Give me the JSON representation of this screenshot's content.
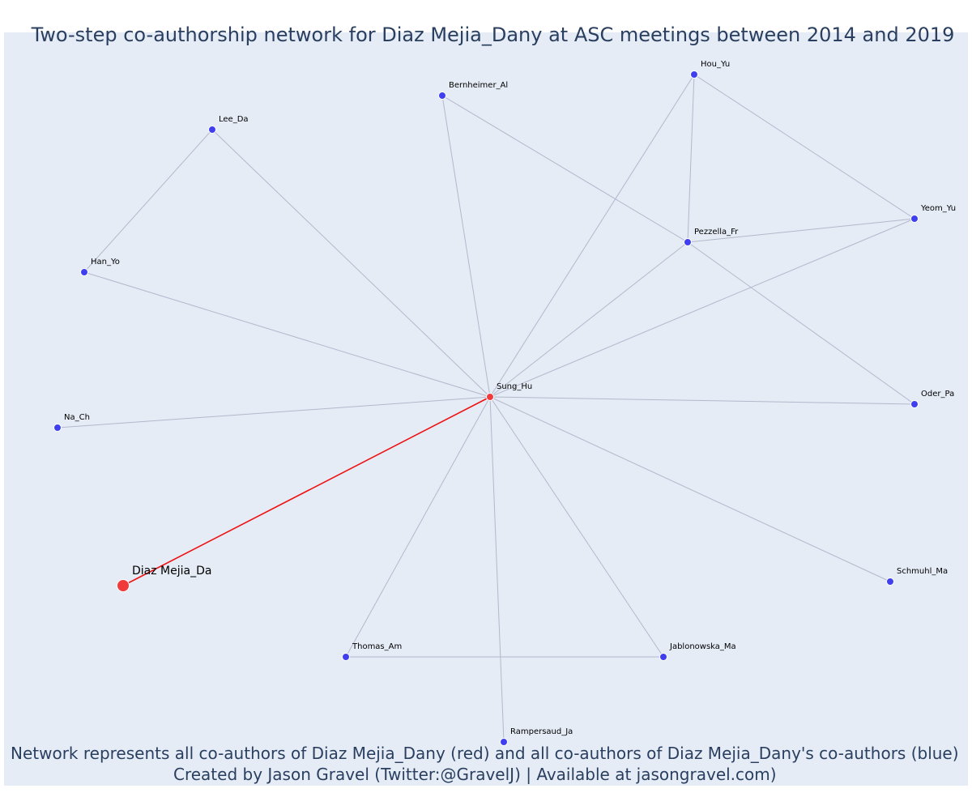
{
  "title": "Two-step co-authorship network for Diaz Mejia_Dany at ASC meetings between 2014 and 2019",
  "caption": {
    "line1": "Network represents all co-authors of Diaz Mejia_Dany (red) and all co-authors of Diaz Mejia_Dany's co-authors (blue)",
    "line2": "Created by Jason Gravel (Twitter:@GravelJ) | Available at jasongravel.com)"
  },
  "colors": {
    "background": "#e5ecf6",
    "edge": "#b3b8cc",
    "direct_edge": "#ee1111",
    "coauthor_node": "#3f3ff0",
    "focal_node": "#ef3b3b",
    "text": "#2a3f5f"
  },
  "nodes": [
    {
      "id": "Diaz Mejia_Da",
      "group": "focal"
    },
    {
      "id": "Sung_Hu",
      "group": "coauthor"
    },
    {
      "id": "Hou_Yu",
      "group": "second-degree"
    },
    {
      "id": "Bernheimer_Al",
      "group": "second-degree"
    },
    {
      "id": "Lee_Da",
      "group": "second-degree"
    },
    {
      "id": "Yeom_Yu",
      "group": "second-degree"
    },
    {
      "id": "Pezzella_Fr",
      "group": "second-degree"
    },
    {
      "id": "Han_Yo",
      "group": "second-degree"
    },
    {
      "id": "Na_Ch",
      "group": "second-degree"
    },
    {
      "id": "Oder_Pa",
      "group": "second-degree"
    },
    {
      "id": "Schmuhl_Ma",
      "group": "second-degree"
    },
    {
      "id": "Thomas_Am",
      "group": "second-degree"
    },
    {
      "id": "Jablonowska_Ma",
      "group": "second-degree"
    },
    {
      "id": "Rampersaud_Ja",
      "group": "second-degree"
    }
  ],
  "edges": [
    {
      "source": "Diaz Mejia_Da",
      "target": "Sung_Hu",
      "direct": true
    },
    {
      "source": "Sung_Hu",
      "target": "Hou_Yu"
    },
    {
      "source": "Sung_Hu",
      "target": "Bernheimer_Al"
    },
    {
      "source": "Sung_Hu",
      "target": "Lee_Da"
    },
    {
      "source": "Sung_Hu",
      "target": "Yeom_Yu"
    },
    {
      "source": "Sung_Hu",
      "target": "Pezzella_Fr"
    },
    {
      "source": "Sung_Hu",
      "target": "Han_Yo"
    },
    {
      "source": "Sung_Hu",
      "target": "Na_Ch"
    },
    {
      "source": "Sung_Hu",
      "target": "Oder_Pa"
    },
    {
      "source": "Sung_Hu",
      "target": "Schmuhl_Ma"
    },
    {
      "source": "Sung_Hu",
      "target": "Thomas_Am"
    },
    {
      "source": "Sung_Hu",
      "target": "Jablonowska_Ma"
    },
    {
      "source": "Sung_Hu",
      "target": "Rampersaud_Ja"
    },
    {
      "source": "Hou_Yu",
      "target": "Pezzella_Fr"
    },
    {
      "source": "Hou_Yu",
      "target": "Yeom_Yu"
    },
    {
      "source": "Pezzella_Fr",
      "target": "Yeom_Yu"
    },
    {
      "source": "Bernheimer_Al",
      "target": "Pezzella_Fr"
    },
    {
      "source": "Pezzella_Fr",
      "target": "Oder_Pa"
    },
    {
      "source": "Lee_Da",
      "target": "Han_Yo"
    },
    {
      "source": "Thomas_Am",
      "target": "Jablonowska_Ma"
    }
  ]
}
